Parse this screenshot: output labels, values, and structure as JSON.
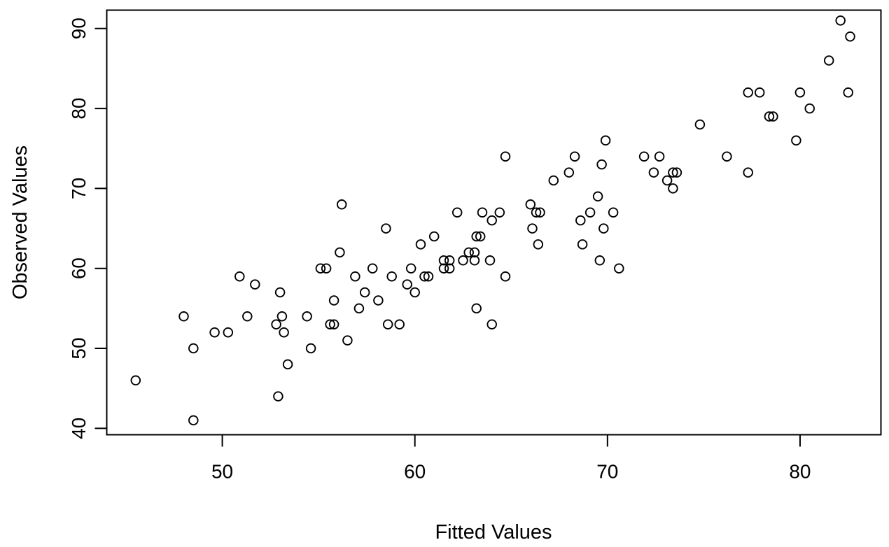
{
  "figure": {
    "background": "#FFFFFF",
    "foreground": "#000000"
  },
  "chart_data": {
    "type": "scatter",
    "title": "",
    "xlabel": "Fitted Values",
    "ylabel": "Observed Values",
    "xlim": [
      44.0,
      84.2
    ],
    "ylim": [
      39.2,
      92.3
    ],
    "xticks": [
      50,
      60,
      70,
      80
    ],
    "yticks": [
      40,
      50,
      60,
      70,
      80,
      90
    ],
    "grid": false,
    "legend_position": "none",
    "marker": "open-circle",
    "marker_color": "#000000",
    "points": [
      [
        45.5,
        46
      ],
      [
        48.0,
        54
      ],
      [
        48.5,
        41
      ],
      [
        48.5,
        50
      ],
      [
        49.6,
        52
      ],
      [
        50.3,
        52
      ],
      [
        50.9,
        59
      ],
      [
        51.3,
        54
      ],
      [
        51.7,
        58
      ],
      [
        52.8,
        53
      ],
      [
        52.9,
        44
      ],
      [
        53.0,
        57
      ],
      [
        53.1,
        54
      ],
      [
        53.2,
        52
      ],
      [
        53.4,
        48
      ],
      [
        54.4,
        54
      ],
      [
        54.6,
        50
      ],
      [
        55.1,
        60
      ],
      [
        55.4,
        60
      ],
      [
        55.6,
        53
      ],
      [
        55.8,
        53
      ],
      [
        55.8,
        56
      ],
      [
        56.1,
        62
      ],
      [
        56.2,
        68
      ],
      [
        56.5,
        51
      ],
      [
        56.9,
        59
      ],
      [
        57.1,
        55
      ],
      [
        57.4,
        57
      ],
      [
        57.8,
        60
      ],
      [
        58.1,
        56
      ],
      [
        58.5,
        65
      ],
      [
        58.6,
        53
      ],
      [
        58.8,
        59
      ],
      [
        59.2,
        53
      ],
      [
        59.6,
        58
      ],
      [
        59.8,
        60
      ],
      [
        60.0,
        57
      ],
      [
        60.3,
        63
      ],
      [
        60.5,
        59
      ],
      [
        60.7,
        59
      ],
      [
        61.0,
        64
      ],
      [
        61.5,
        60
      ],
      [
        61.5,
        61
      ],
      [
        61.8,
        60
      ],
      [
        61.8,
        61
      ],
      [
        62.2,
        67
      ],
      [
        62.5,
        61
      ],
      [
        62.8,
        62
      ],
      [
        63.1,
        61
      ],
      [
        63.1,
        62
      ],
      [
        63.2,
        55
      ],
      [
        63.2,
        64
      ],
      [
        63.4,
        64
      ],
      [
        63.5,
        67
      ],
      [
        63.9,
        61
      ],
      [
        64.0,
        53
      ],
      [
        64.0,
        66
      ],
      [
        64.4,
        67
      ],
      [
        64.7,
        59
      ],
      [
        64.7,
        74
      ],
      [
        66.0,
        68
      ],
      [
        66.1,
        65
      ],
      [
        66.3,
        67
      ],
      [
        66.4,
        63
      ],
      [
        66.5,
        67
      ],
      [
        67.2,
        71
      ],
      [
        68.0,
        72
      ],
      [
        68.3,
        74
      ],
      [
        68.6,
        66
      ],
      [
        68.7,
        63
      ],
      [
        69.1,
        67
      ],
      [
        69.5,
        69
      ],
      [
        69.6,
        61
      ],
      [
        69.7,
        73
      ],
      [
        69.8,
        65
      ],
      [
        69.9,
        76
      ],
      [
        70.3,
        67
      ],
      [
        70.6,
        60
      ],
      [
        71.9,
        74
      ],
      [
        72.4,
        72
      ],
      [
        72.7,
        74
      ],
      [
        73.1,
        71
      ],
      [
        73.4,
        70
      ],
      [
        73.4,
        72
      ],
      [
        73.6,
        72
      ],
      [
        74.8,
        78
      ],
      [
        76.2,
        74
      ],
      [
        77.3,
        72
      ],
      [
        77.3,
        82
      ],
      [
        77.9,
        82
      ],
      [
        78.4,
        79
      ],
      [
        78.6,
        79
      ],
      [
        79.8,
        76
      ],
      [
        80.0,
        82
      ],
      [
        80.5,
        80
      ],
      [
        81.5,
        86
      ],
      [
        82.1,
        91
      ],
      [
        82.5,
        82
      ],
      [
        82.6,
        89
      ]
    ]
  }
}
